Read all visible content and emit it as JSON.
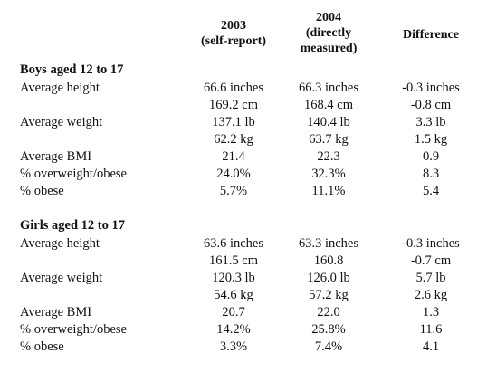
{
  "columns": [
    {
      "lines": [
        "2003",
        "(self-report)"
      ]
    },
    {
      "lines": [
        "2004",
        "(directly",
        "measured)"
      ]
    },
    {
      "lines": [
        "Difference"
      ]
    }
  ],
  "sections": [
    {
      "title": "Boys aged 12 to 17",
      "rows": [
        {
          "label": "Average height",
          "v2003": "66.6 inches",
          "v2004": "66.3 inches",
          "diff": "-0.3 inches"
        },
        {
          "label": "",
          "v2003": "169.2 cm",
          "v2004": "168.4 cm",
          "diff": "-0.8 cm"
        },
        {
          "label": "Average weight",
          "v2003": "137.1 lb",
          "v2004": "140.4 lb",
          "diff": "3.3 lb"
        },
        {
          "label": "",
          "v2003": "62.2 kg",
          "v2004": "63.7 kg",
          "diff": "1.5 kg"
        },
        {
          "label": "Average BMI",
          "v2003": "21.4",
          "v2004": "22.3",
          "diff": "0.9"
        },
        {
          "label": "% overweight/obese",
          "v2003": "24.0%",
          "v2004": "32.3%",
          "diff": "8.3"
        },
        {
          "label": "% obese",
          "v2003": "5.7%",
          "v2004": "11.1%",
          "diff": "5.4"
        }
      ]
    },
    {
      "title": "Girls aged 12 to 17",
      "rows": [
        {
          "label": "Average height",
          "v2003": "63.6 inches",
          "v2004": "63.3 inches",
          "diff": "-0.3 inches"
        },
        {
          "label": "",
          "v2003": "161.5 cm",
          "v2004": "160.8",
          "diff": "-0.7 cm"
        },
        {
          "label": "Average weight",
          "v2003": "120.3 lb",
          "v2004": "126.0 lb",
          "diff": "5.7 lb"
        },
        {
          "label": "",
          "v2003": "54.6 kg",
          "v2004": "57.2 kg",
          "diff": "2.6 kg"
        },
        {
          "label": "Average BMI",
          "v2003": "20.7",
          "v2004": "22.0",
          "diff": "1.3"
        },
        {
          "label": "% overweight/obese",
          "v2003": "14.2%",
          "v2004": "25.8%",
          "diff": "11.6"
        },
        {
          "label": "% obese",
          "v2003": "3.3%",
          "v2004": "7.4%",
          "diff": "4.1"
        }
      ]
    }
  ]
}
